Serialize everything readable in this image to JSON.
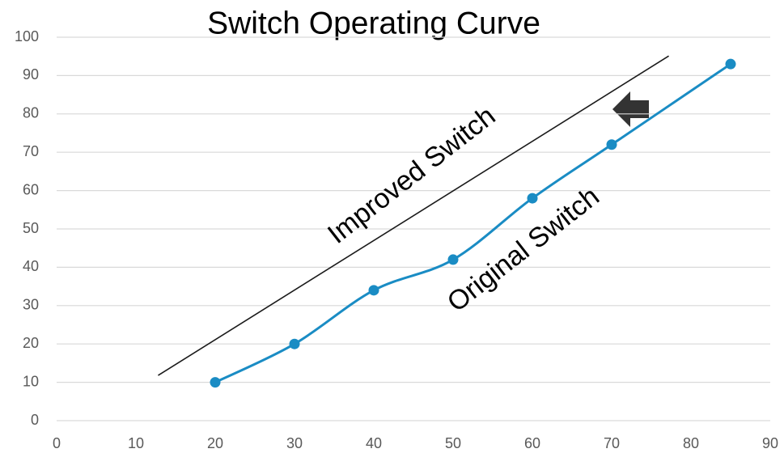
{
  "chart_data": {
    "type": "line",
    "title": "Switch Operating Curve",
    "xlim": [
      0,
      90
    ],
    "xticks": [
      0,
      10,
      20,
      30,
      40,
      50,
      60,
      70,
      80,
      90
    ],
    "ylim": [
      0,
      100
    ],
    "yticks": [
      0,
      10,
      20,
      30,
      40,
      50,
      60,
      70,
      80,
      90,
      100
    ],
    "grid": true,
    "series": [
      {
        "name": "Original Switch",
        "color": "#1a8cc4",
        "smooth": true,
        "markers": true,
        "x": [
          20,
          30,
          40,
          50,
          60,
          70,
          85
        ],
        "values": [
          10,
          20,
          34,
          42,
          58,
          72,
          93
        ]
      },
      {
        "name": "Improved Switch",
        "color": "#1a1a1a",
        "smooth": false,
        "markers": false,
        "x": [
          12.8,
          77.2
        ],
        "values": [
          11.8,
          95.1
        ]
      }
    ]
  }
}
